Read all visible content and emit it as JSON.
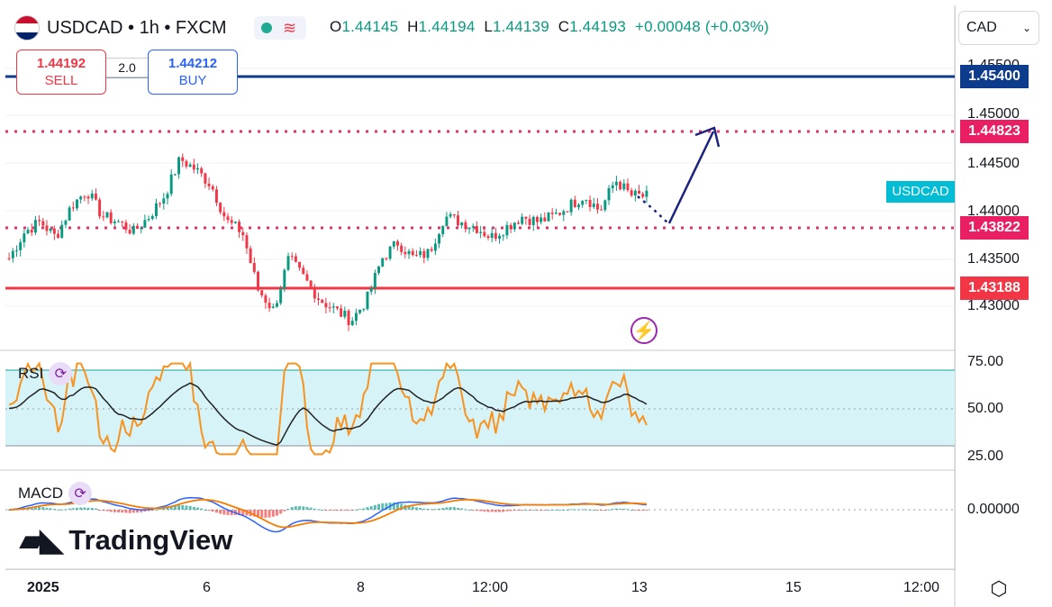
{
  "symbol": {
    "name": "USDCAD",
    "separator": "•",
    "interval": "1h",
    "source": "FXCM",
    "title_text": "USDCAD • 1h • FXCM"
  },
  "ohlc": {
    "open_key": "O",
    "open": "1.44145",
    "high_key": "H",
    "high": "1.44194",
    "low_key": "L",
    "low": "1.44139",
    "close_key": "C",
    "close": "1.44193",
    "change": "+0.00048 (+0.03%)"
  },
  "trade": {
    "sell_price": "1.44192",
    "sell_label": "SELL",
    "buy_price": "1.44212",
    "buy_label": "BUY",
    "spread": "2.0"
  },
  "currency_select": {
    "value": "CAD"
  },
  "price_axis": {
    "ticks": [
      "1.45500",
      "1.45000",
      "1.44500",
      "1.44000",
      "1.43500",
      "1.43000"
    ],
    "tags": [
      {
        "value": "1.45400",
        "color": "#0d3c8c"
      },
      {
        "value": "1.44823",
        "color": "#e91e63"
      },
      {
        "value": "1.43822",
        "color": "#e91e63"
      },
      {
        "value": "1.43188",
        "color": "#f23645"
      }
    ],
    "symbol_badge": "USDCAD"
  },
  "time_axis": {
    "labels": [
      "2025",
      "6",
      "8",
      "12:00",
      "13",
      "15",
      "12:00"
    ]
  },
  "rsi": {
    "label": "RSI",
    "ticks": [
      "75.00",
      "50.00",
      "25.00"
    ]
  },
  "macd": {
    "label": "MACD",
    "ticks": [
      "0.00000"
    ]
  },
  "branding": {
    "logo_text": "TradingView"
  },
  "icons": {
    "flag": "us-canada-flag-icon",
    "status": "market-open-dot-icon",
    "wave": "wave-icon",
    "refresh": "refresh-icon",
    "bolt": "lightning-icon",
    "settings": "settings-icon",
    "chevron": "chevron-down-icon"
  },
  "colors": {
    "up": "#089981",
    "down": "#f23645",
    "rsi_line": "#f7931e",
    "rsi_band": "#d6f3f8",
    "macd_fast": "#2962ff",
    "macd_slow": "#f57c00",
    "arrow": "#1a237e"
  },
  "chart_data": {
    "type": "candlestick",
    "series": [
      {
        "name": "USDCAD",
        "close_path": [
          1.436,
          1.4385,
          1.4395,
          1.438,
          1.441,
          1.4425,
          1.44,
          1.4395,
          1.4385,
          1.44,
          1.442,
          1.4455,
          1.4445,
          1.443,
          1.4395,
          1.4385,
          1.433,
          1.431,
          1.436,
          1.434,
          1.432,
          1.431,
          1.43,
          1.432,
          1.436,
          1.4375,
          1.436,
          1.4365,
          1.44,
          1.4395,
          1.439,
          1.438,
          1.439,
          1.44,
          1.4395,
          1.44,
          1.441,
          1.442,
          1.4405,
          1.4435,
          1.442,
          1.4419
        ]
      }
    ],
    "levels": [
      1.454,
      1.44823,
      1.43822,
      1.43188
    ],
    "ylim": [
      1.4275,
      1.456
    ]
  }
}
